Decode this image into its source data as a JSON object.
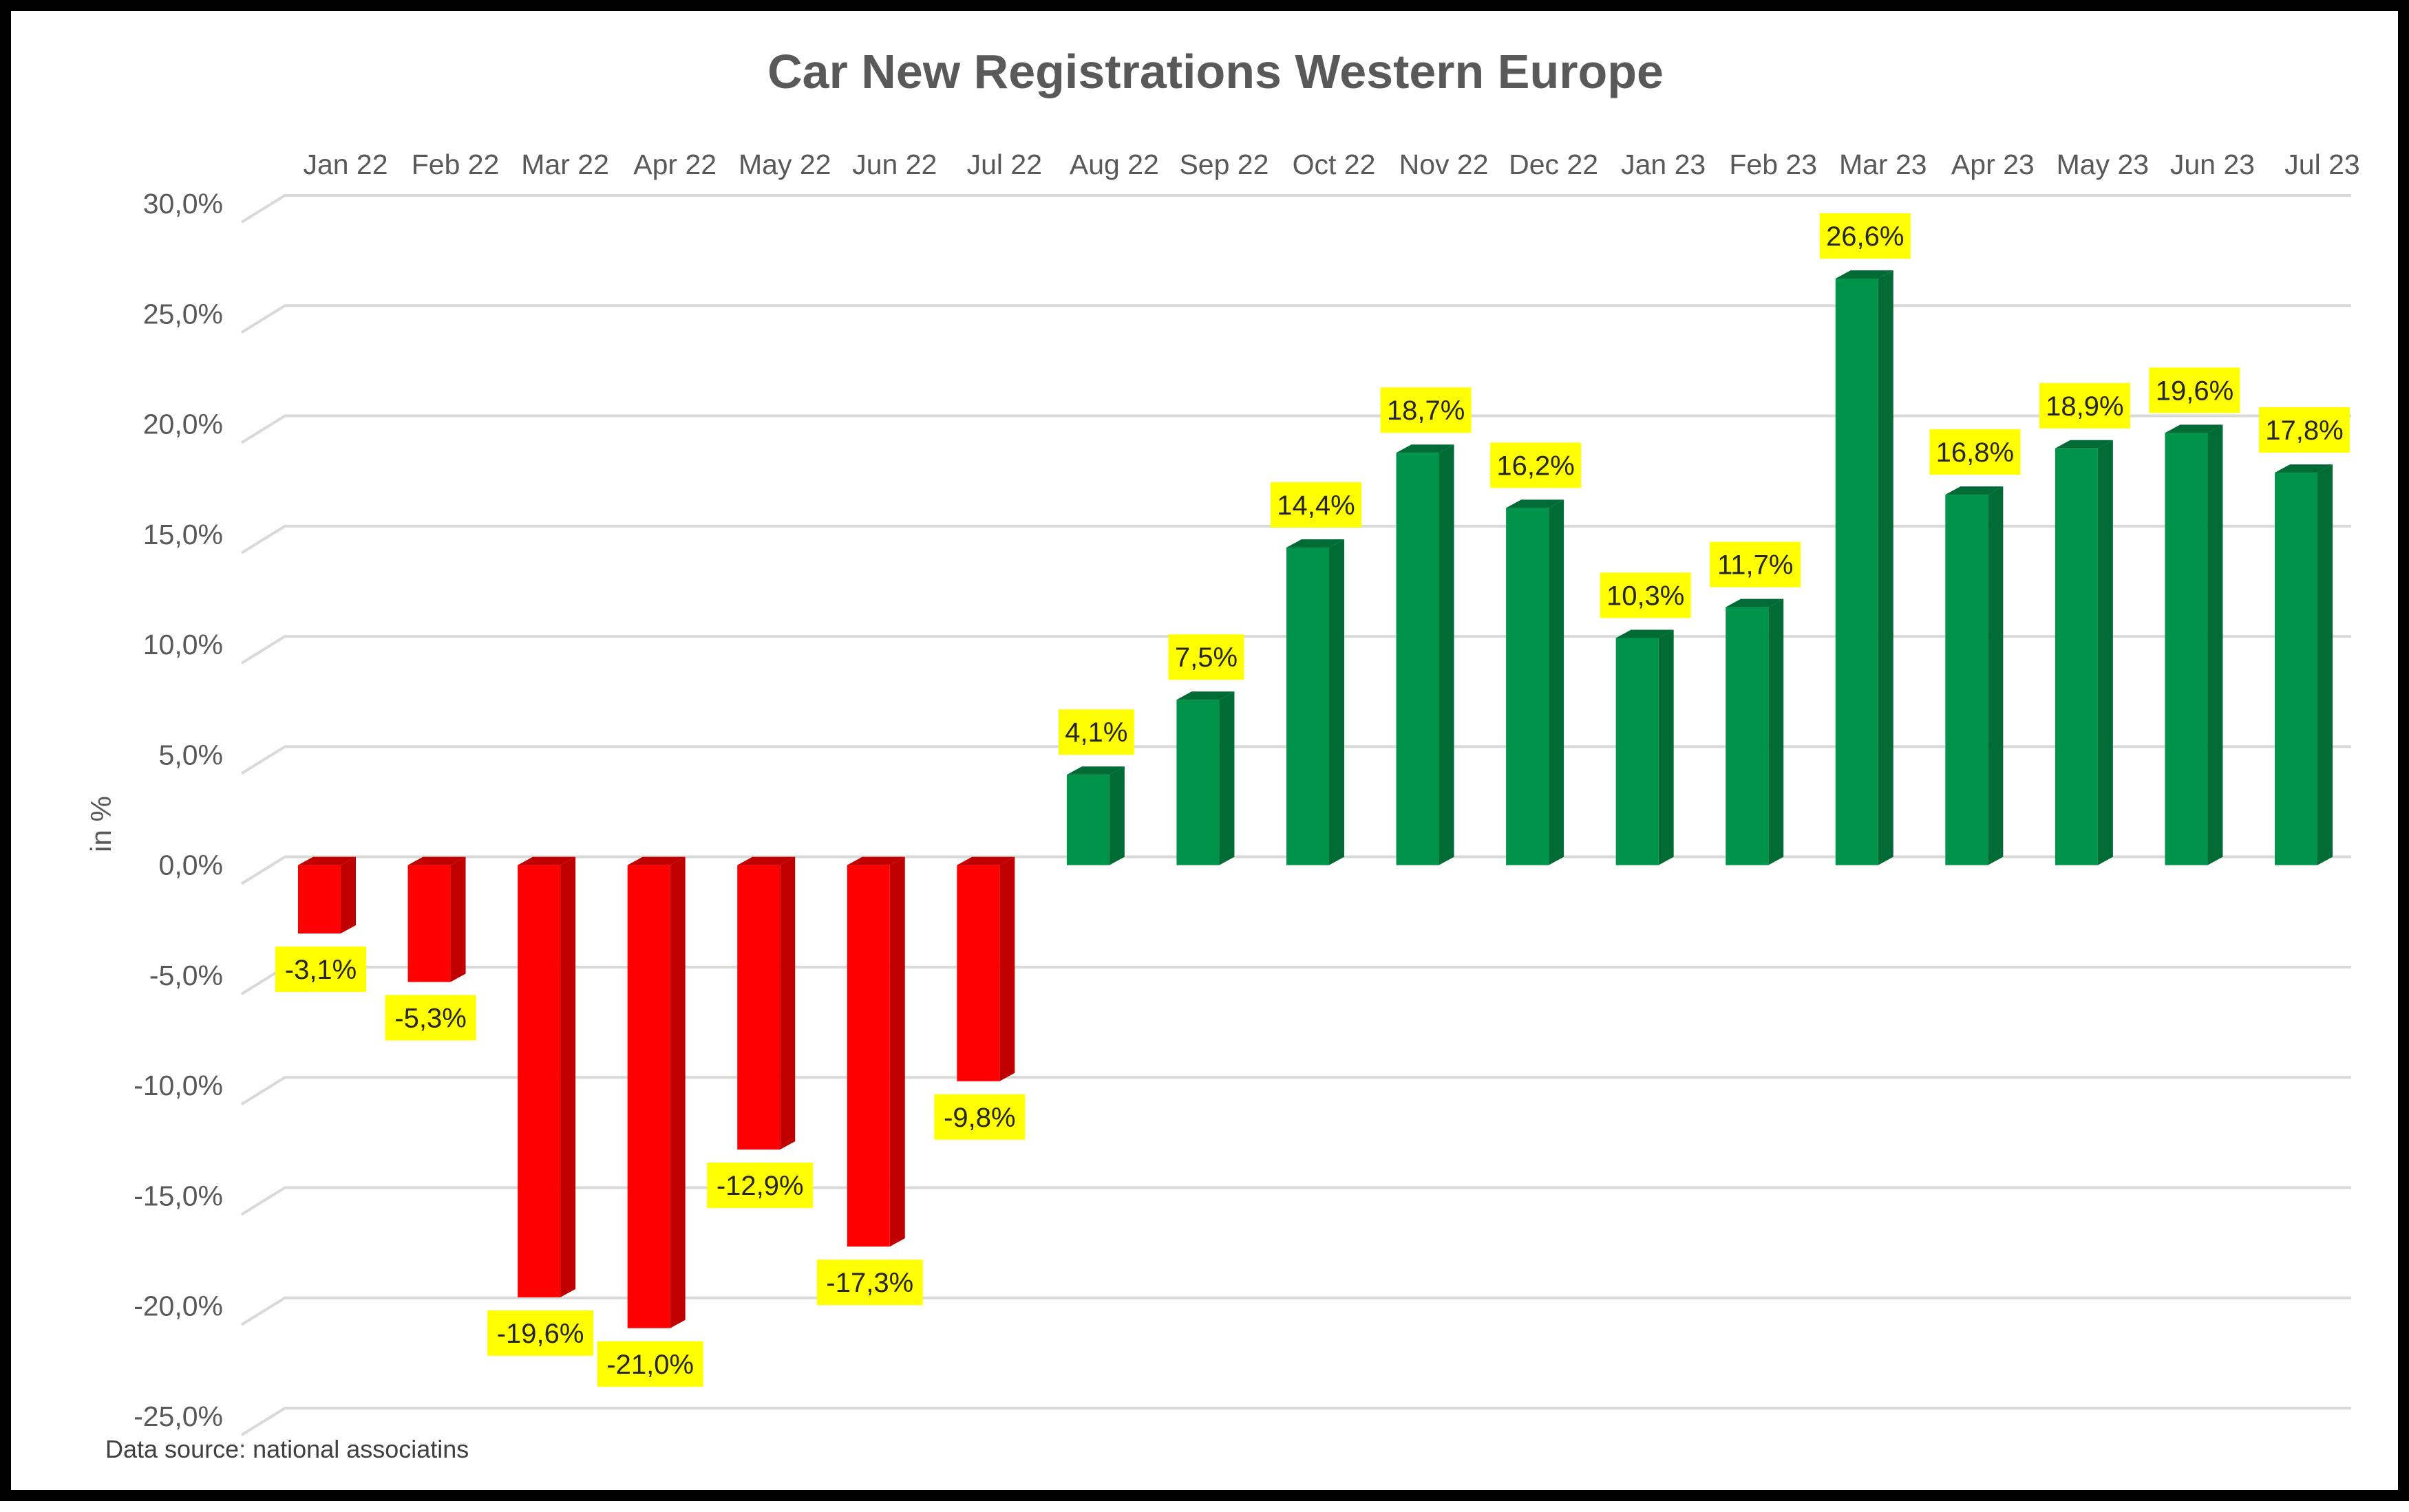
{
  "chart_data": {
    "type": "bar",
    "title": "Car New Registrations Western Europe",
    "ylabel": "in %",
    "xlabel": "",
    "source_note": "Data source: national associatins",
    "categories": [
      "Jan 22",
      "Feb 22",
      "Mar 22",
      "Apr 22",
      "May 22",
      "Jun 22",
      "Jul 22",
      "Aug 22",
      "Sep 22",
      "Oct 22",
      "Nov 22",
      "Dec 22",
      "Jan 23",
      "Feb 23",
      "Mar 23",
      "Apr 23",
      "May 23",
      "Jun 23",
      "Jul 23"
    ],
    "values": [
      -3.1,
      -5.3,
      -19.6,
      -21.0,
      -12.9,
      -17.3,
      -9.8,
      4.1,
      7.5,
      14.4,
      18.7,
      16.2,
      10.3,
      11.7,
      26.6,
      16.8,
      18.9,
      19.6,
      17.8
    ],
    "data_labels": [
      "-3,1%",
      "-5,3%",
      "-19,6%",
      "-21,0%",
      "-12,9%",
      "-17,3%",
      "-9,8%",
      "4,1%",
      "7,5%",
      "14,4%",
      "18,7%",
      "16,2%",
      "10,3%",
      "11,7%",
      "26,6%",
      "16,8%",
      "18,9%",
      "19,6%",
      "17,8%"
    ],
    "ylim": [
      -25,
      30
    ],
    "yticks": [
      30,
      25,
      20,
      15,
      10,
      5,
      0,
      -5,
      -10,
      -15,
      -20,
      -25
    ],
    "ytick_labels": [
      "30,0%",
      "25,0%",
      "20,0%",
      "15,0%",
      "10,0%",
      "5,0%",
      "0,0%",
      "-5,0%",
      "-10,0%",
      "-15,0%",
      "-20,0%",
      "-25,0%"
    ],
    "category_axis_position": "top",
    "grid": true,
    "bar_style": "3d-column",
    "colors": {
      "negative": "#ff0000",
      "negative_side": "#c00000",
      "positive": "#00944a",
      "positive_side": "#006b35",
      "label_bg": "#ffff00",
      "gridline": "#d9d9d9"
    }
  }
}
